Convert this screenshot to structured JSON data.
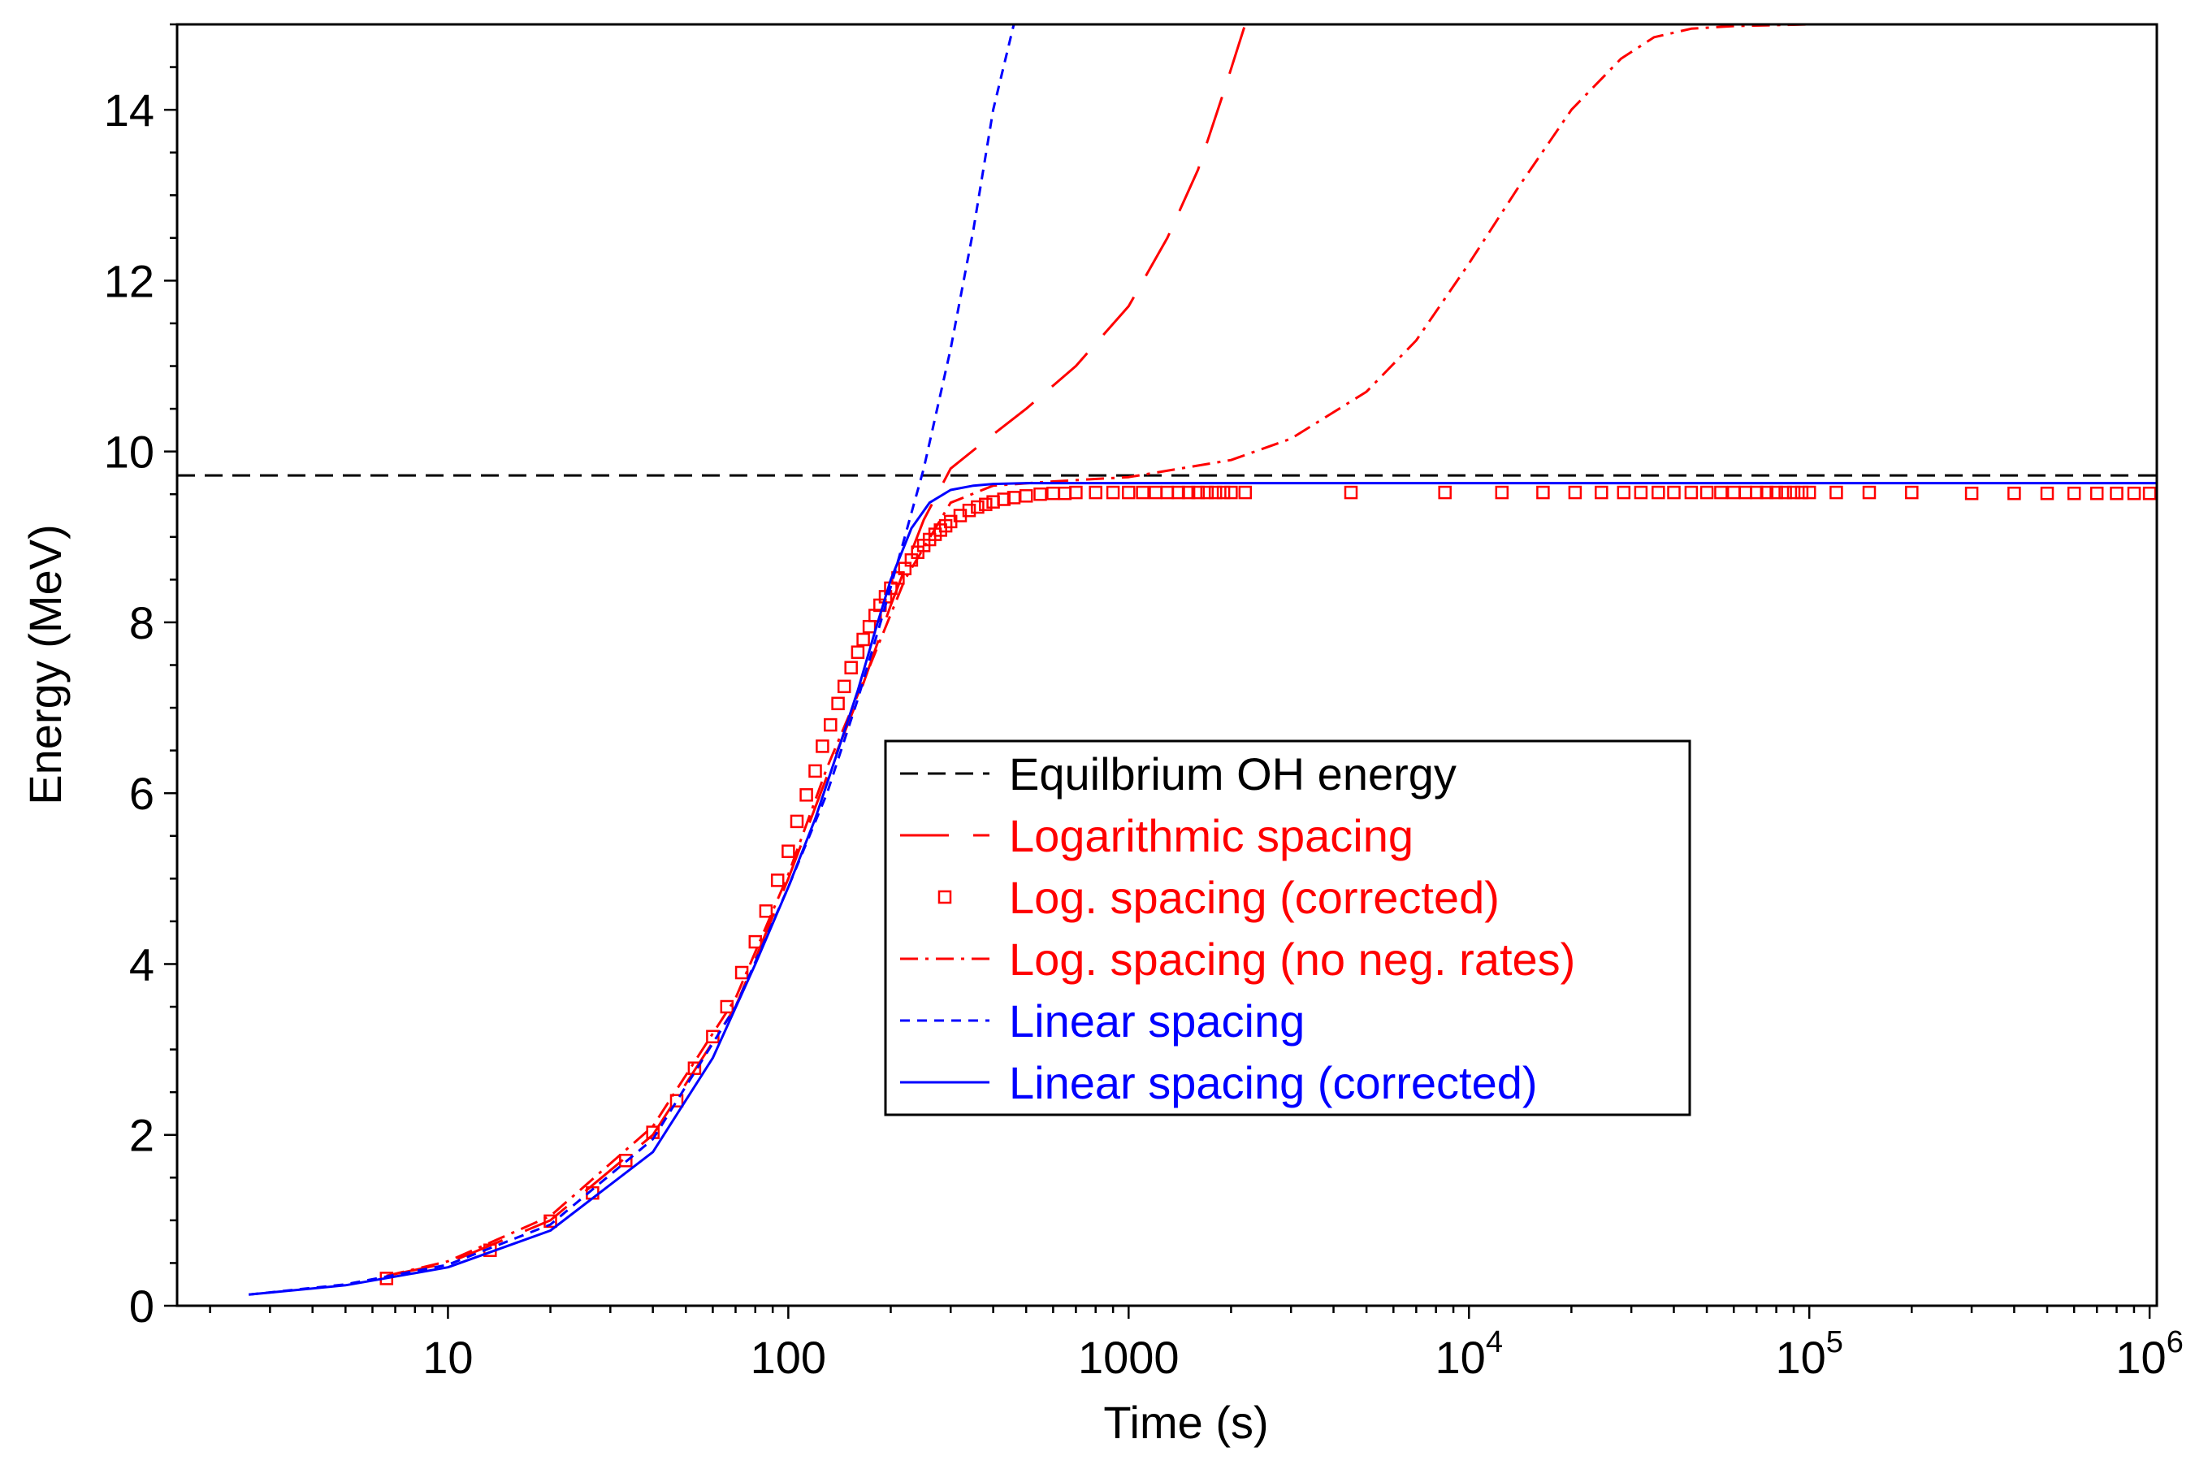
{
  "chart_data": {
    "type": "line",
    "title": "",
    "xlabel": "Time (s)",
    "ylabel": "Energy (MeV)",
    "xscale": "log",
    "xlim": [
      1.6,
      1050000.0
    ],
    "ylim": [
      0,
      15
    ],
    "grid": false,
    "legend_position": "center-right",
    "x_ticks": [
      {
        "value": 10,
        "label": "10",
        "sup": ""
      },
      {
        "value": 100,
        "label": "100",
        "sup": ""
      },
      {
        "value": 1000,
        "label": "1000",
        "sup": ""
      },
      {
        "value": 10000,
        "label": "10",
        "sup": "4"
      },
      {
        "value": 100000,
        "label": "10",
        "sup": "5"
      },
      {
        "value": 1000000,
        "label": "10",
        "sup": "6"
      }
    ],
    "y_ticks": [
      {
        "value": 0,
        "label": "0"
      },
      {
        "value": 2,
        "label": "2"
      },
      {
        "value": 4,
        "label": "4"
      },
      {
        "value": 6,
        "label": "6"
      },
      {
        "value": 8,
        "label": "8"
      },
      {
        "value": 10,
        "label": "10"
      },
      {
        "value": 12,
        "label": "12"
      },
      {
        "value": 14,
        "label": "14"
      }
    ],
    "series": [
      {
        "name": "Equilbrium OH energy",
        "color": "#000000",
        "style": "dash-medium",
        "x": [
          1.6,
          1050000
        ],
        "y": [
          9.72,
          9.72
        ]
      },
      {
        "name": "Logarithmic spacing",
        "color": "#ff0000",
        "style": "dash-long",
        "x": [
          6.6,
          10,
          20,
          40,
          70,
          100,
          130,
          160,
          200,
          250,
          300,
          400,
          500,
          700,
          1000,
          1300,
          1600,
          1900,
          2200
        ],
        "y": [
          0.35,
          0.5,
          1.0,
          2.0,
          3.5,
          5.0,
          6.2,
          7.1,
          8.2,
          9.2,
          9.8,
          10.2,
          10.5,
          11.0,
          11.7,
          12.5,
          13.3,
          14.2,
          15.0
        ]
      },
      {
        "name": "Log. spacing (corrected)",
        "color": "#ff0000",
        "style": "markers-square",
        "x": [
          6.6,
          13.3,
          20,
          26.6,
          33.3,
          40,
          47,
          53,
          60,
          66,
          73,
          80,
          86,
          93,
          100,
          106,
          113,
          120,
          126,
          133,
          140,
          146,
          153,
          160,
          166,
          173,
          180,
          186,
          193,
          200,
          210,
          220,
          230,
          240,
          250,
          260,
          270,
          280,
          290,
          300,
          320,
          340,
          360,
          380,
          400,
          430,
          460,
          500,
          550,
          600,
          650,
          700,
          800,
          900,
          1000,
          1100,
          1200,
          1300,
          1400,
          1500,
          1600,
          1700,
          1800,
          1900,
          2000,
          2200,
          4500,
          8500,
          12500,
          16500,
          20500,
          24500,
          28500,
          32000,
          36000,
          40000,
          45000,
          50000,
          55000,
          60000,
          65000,
          70000,
          75000,
          80000,
          85000,
          90000,
          95000,
          100000,
          120000,
          150000,
          200000,
          300000,
          400000,
          500000,
          600000,
          700000,
          800000,
          900000,
          1000000
        ],
        "y": [
          0.32,
          0.65,
          0.99,
          1.32,
          1.7,
          2.03,
          2.4,
          2.78,
          3.15,
          3.5,
          3.9,
          4.26,
          4.62,
          4.98,
          5.32,
          5.67,
          5.98,
          6.26,
          6.55,
          6.8,
          7.05,
          7.25,
          7.47,
          7.65,
          7.8,
          7.95,
          8.08,
          8.2,
          8.3,
          8.4,
          8.52,
          8.63,
          8.73,
          8.82,
          8.9,
          8.97,
          9.03,
          9.08,
          9.13,
          9.18,
          9.25,
          9.31,
          9.35,
          9.38,
          9.41,
          9.44,
          9.46,
          9.48,
          9.5,
          9.51,
          9.51,
          9.52,
          9.52,
          9.52,
          9.52,
          9.52,
          9.52,
          9.52,
          9.52,
          9.52,
          9.52,
          9.52,
          9.52,
          9.52,
          9.52,
          9.52,
          9.52,
          9.52,
          9.52,
          9.52,
          9.52,
          9.52,
          9.52,
          9.52,
          9.52,
          9.52,
          9.52,
          9.52,
          9.52,
          9.52,
          9.52,
          9.52,
          9.52,
          9.52,
          9.52,
          9.52,
          9.52,
          9.52,
          9.52,
          9.52,
          9.52,
          9.51,
          9.51,
          9.51,
          9.51,
          9.51,
          9.51,
          9.51,
          9.51
        ]
      },
      {
        "name": "Log. spacing (no neg. rates)",
        "color": "#ff0000",
        "style": "dash-dot",
        "x": [
          6.6,
          10,
          20,
          40,
          70,
          100,
          130,
          170,
          220,
          300,
          400,
          600,
          1000,
          2000,
          3000,
          5000,
          7000,
          10000,
          14000,
          20000,
          28000,
          35000,
          45000,
          60000,
          100000,
          300000,
          1000000
        ],
        "y": [
          0.35,
          0.52,
          1.05,
          2.1,
          3.6,
          5.05,
          6.3,
          7.4,
          8.5,
          9.4,
          9.6,
          9.65,
          9.7,
          9.9,
          10.15,
          10.7,
          11.3,
          12.2,
          13.1,
          14.0,
          14.6,
          14.85,
          14.95,
          14.98,
          15.0,
          15.0,
          15.0
        ]
      },
      {
        "name": "Linear spacing",
        "color": "#0000ff",
        "style": "dash-short",
        "x": [
          2.6,
          5,
          10,
          20,
          40,
          70,
          100,
          130,
          160,
          190,
          220,
          250,
          300,
          350,
          400,
          460
        ],
        "y": [
          0.13,
          0.25,
          0.48,
          0.95,
          1.95,
          3.5,
          4.9,
          6.0,
          7.1,
          8.1,
          9.0,
          9.8,
          11.2,
          12.6,
          14.0,
          15.0
        ]
      },
      {
        "name": "Linear spacing (corrected)",
        "color": "#0000ff",
        "style": "solid",
        "x": [
          2.6,
          5,
          10,
          20,
          40,
          60,
          80,
          100,
          120,
          140,
          160,
          180,
          200,
          230,
          260,
          300,
          350,
          400,
          500,
          700,
          1000,
          10000,
          100000,
          1050000
        ],
        "y": [
          0.13,
          0.24,
          0.45,
          0.88,
          1.8,
          2.9,
          4.0,
          4.9,
          5.7,
          6.5,
          7.2,
          7.9,
          8.5,
          9.1,
          9.4,
          9.55,
          9.6,
          9.62,
          9.63,
          9.63,
          9.63,
          9.63,
          9.63,
          9.63
        ]
      }
    ]
  }
}
